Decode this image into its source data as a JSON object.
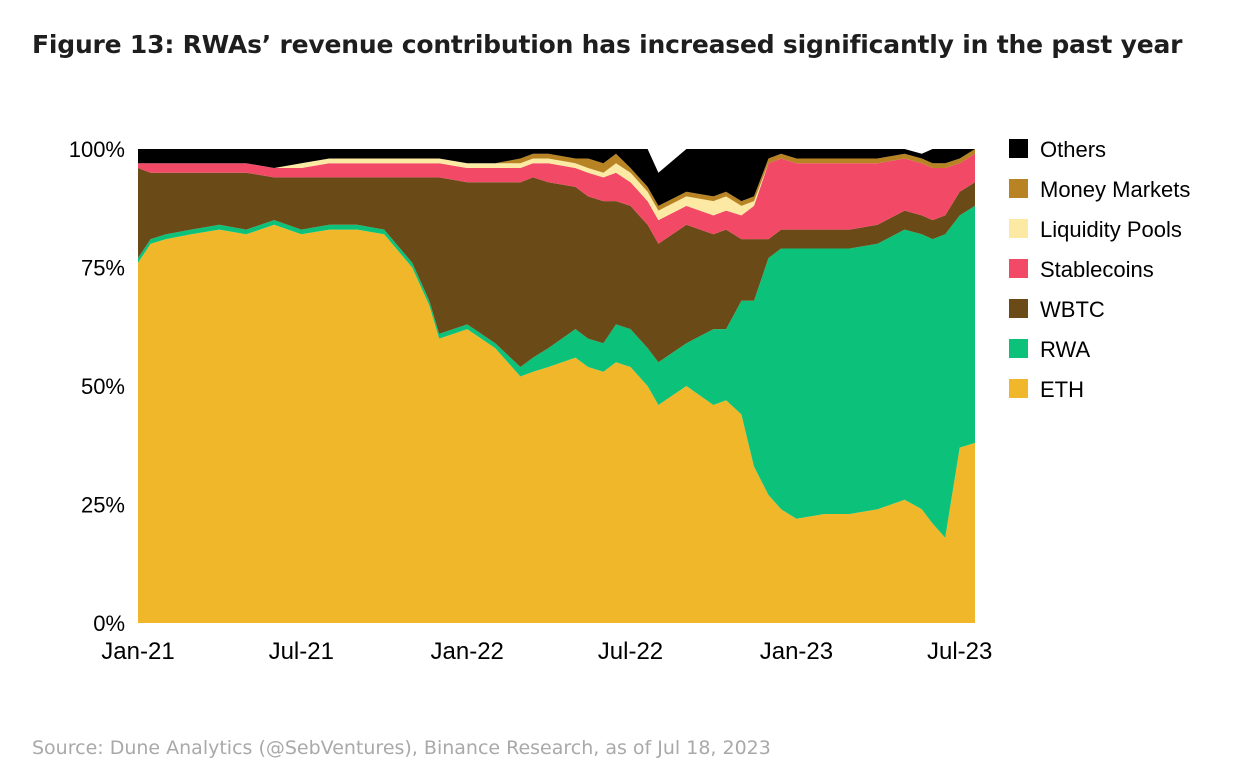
{
  "figure": {
    "title": "Figure 13: RWAs’ revenue contribution has increased significantly in the past year",
    "source": "Source: Dune Analytics (@SebVentures), Binance Research, as of Jul 18, 2023"
  },
  "chart_data": {
    "type": "area",
    "stacked": true,
    "percent_stacked": true,
    "x_start": "2021-01-01",
    "x_end": "2023-07-18",
    "x_tick_labels": [
      "Jan-21",
      "Jul-21",
      "Jan-22",
      "Jul-22",
      "Jan-23",
      "Jul-23"
    ],
    "x_tick_dates": [
      "2021-01-01",
      "2021-07-01",
      "2022-01-01",
      "2022-07-01",
      "2023-01-01",
      "2023-07-01"
    ],
    "y_tick_labels": [
      "0%",
      "25%",
      "50%",
      "75%",
      "100%"
    ],
    "y_tick_values": [
      0,
      25,
      50,
      75,
      100
    ],
    "ylim": [
      0,
      100
    ],
    "grid": false,
    "legend_position": "right",
    "x": [
      "2021-01-01",
      "2021-01-15",
      "2021-02-01",
      "2021-03-01",
      "2021-04-01",
      "2021-05-01",
      "2021-06-01",
      "2021-07-01",
      "2021-08-01",
      "2021-09-01",
      "2021-10-01",
      "2021-11-01",
      "2021-11-20",
      "2021-12-01",
      "2022-01-01",
      "2022-02-01",
      "2022-03-01",
      "2022-03-15",
      "2022-04-01",
      "2022-05-01",
      "2022-05-15",
      "2022-06-01",
      "2022-06-15",
      "2022-07-01",
      "2022-07-20",
      "2022-08-01",
      "2022-09-01",
      "2022-10-01",
      "2022-10-15",
      "2022-11-01",
      "2022-11-15",
      "2022-12-01",
      "2022-12-15",
      "2023-01-01",
      "2023-02-01",
      "2023-03-01",
      "2023-04-01",
      "2023-05-01",
      "2023-05-20",
      "2023-06-01",
      "2023-06-15",
      "2023-07-01",
      "2023-07-18"
    ],
    "series": [
      {
        "name": "ETH",
        "color": "#f0b72a",
        "values": [
          76,
          80,
          81,
          82,
          83,
          82,
          84,
          82,
          83,
          83,
          82,
          75,
          67,
          60,
          62,
          58,
          52,
          53,
          54,
          56,
          54,
          53,
          55,
          54,
          50,
          46,
          50,
          46,
          47,
          44,
          33,
          27,
          24,
          22,
          23,
          23,
          24,
          26,
          24,
          21,
          18,
          37,
          38
        ]
      },
      {
        "name": "RWA",
        "color": "#0cc27a",
        "values": [
          1,
          1,
          1,
          1,
          1,
          1,
          1,
          1,
          1,
          1,
          1,
          1,
          1,
          1,
          1,
          1,
          2,
          3,
          4,
          6,
          6,
          6,
          8,
          8,
          8,
          9,
          9,
          16,
          15,
          24,
          35,
          50,
          55,
          57,
          56,
          56,
          56,
          57,
          58,
          60,
          64,
          49,
          50
        ]
      },
      {
        "name": "WBTC",
        "color": "#6a4a17",
        "values": [
          19,
          14,
          13,
          12,
          11,
          12,
          9,
          11,
          10,
          10,
          11,
          18,
          26,
          33,
          30,
          34,
          39,
          38,
          35,
          30,
          30,
          30,
          26,
          26,
          26,
          25,
          25,
          20,
          21,
          13,
          13,
          4,
          4,
          4,
          4,
          4,
          4,
          4,
          4,
          4,
          4,
          5,
          5
        ]
      },
      {
        "name": "Stablecoins",
        "color": "#f24a66",
        "values": [
          1,
          2,
          2,
          2,
          2,
          2,
          2,
          2,
          3,
          3,
          3,
          3,
          3,
          3,
          3,
          3,
          3,
          3,
          4,
          4,
          5,
          5,
          6,
          5,
          5,
          5,
          4,
          4,
          4,
          5,
          7,
          16,
          15,
          14,
          14,
          14,
          13,
          11,
          11,
          11,
          10,
          6,
          6
        ]
      },
      {
        "name": "Liquidity Pools",
        "color": "#fbe9a4",
        "values": [
          0,
          0,
          0,
          0,
          0,
          0,
          0,
          1,
          1,
          1,
          1,
          1,
          1,
          1,
          1,
          1,
          1,
          1,
          1,
          1,
          1,
          1,
          2,
          2,
          2,
          2,
          2,
          3,
          3,
          2,
          1,
          0,
          0,
          0,
          0,
          0,
          0,
          0,
          0,
          0,
          0,
          0,
          0
        ]
      },
      {
        "name": "Money Markets",
        "color": "#b88323",
        "values": [
          0,
          0,
          0,
          0,
          0,
          0,
          0,
          0,
          0,
          0,
          0,
          0,
          0,
          0,
          0,
          0,
          1,
          1,
          1,
          1,
          2,
          2,
          2,
          1,
          1,
          1,
          1,
          1,
          1,
          1,
          1,
          1,
          1,
          1,
          1,
          1,
          1,
          1,
          1,
          1,
          1,
          1,
          1
        ]
      },
      {
        "name": "Others",
        "color": "#000000",
        "values": [
          3,
          3,
          3,
          3,
          3,
          3,
          4,
          3,
          2,
          2,
          2,
          2,
          2,
          2,
          3,
          3,
          2,
          1,
          1,
          2,
          2,
          3,
          1,
          4,
          8,
          7,
          9,
          10,
          9,
          11,
          10,
          2,
          1,
          2,
          2,
          2,
          2,
          1,
          1,
          3,
          3,
          2,
          0
        ]
      }
    ],
    "legend_order": [
      "Others",
      "Money Markets",
      "Liquidity Pools",
      "Stablecoins",
      "WBTC",
      "RWA",
      "ETH"
    ]
  }
}
